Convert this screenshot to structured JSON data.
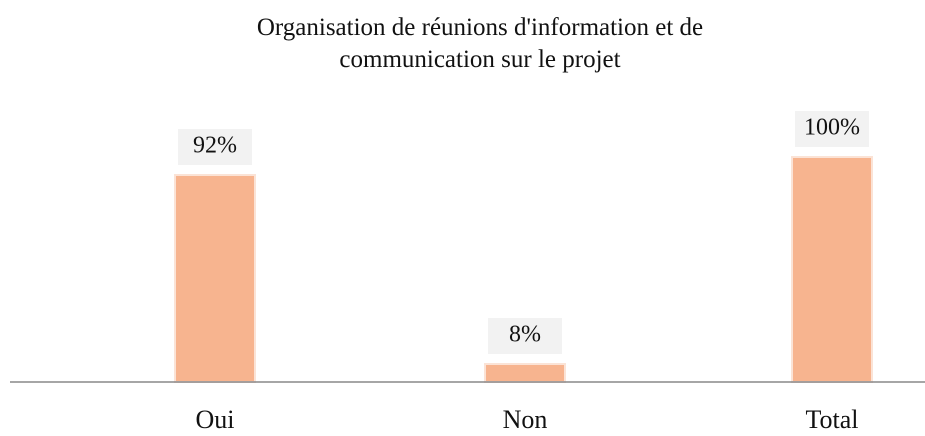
{
  "chart_data": {
    "type": "bar",
    "title": "Organisation de réunions d'information et de communication sur le projet",
    "categories": [
      "Oui",
      "Non",
      "Total"
    ],
    "values": [
      92,
      8,
      100
    ],
    "value_labels": [
      "92%",
      "8%",
      "100%"
    ],
    "color": "#f7b48f"
  }
}
